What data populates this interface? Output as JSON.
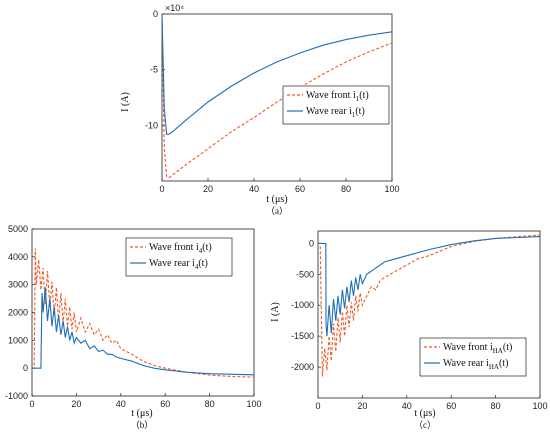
{
  "colors": {
    "front": "#f05a28",
    "rear": "#1f6fb7",
    "axis": "#222222"
  },
  "chart_data": [
    {
      "id": "a",
      "type": "line",
      "caption": "（a）",
      "xlabel": "t (μs)",
      "ylabel": "I (A)",
      "exponent": "×10⁴",
      "xlim": [
        0,
        100
      ],
      "ylim": [
        -15,
        0
      ],
      "xticks": [
        0,
        20,
        40,
        60,
        80,
        100
      ],
      "yticks": [
        0,
        -5,
        -10
      ],
      "legend_position": "inside-right",
      "legend": [
        {
          "text": "Wave front i",
          "sub": "1",
          "tail": "(t)",
          "style": "dashed",
          "color_key": "front"
        },
        {
          "text": "Wave rear i",
          "sub": "1",
          "tail": "(t)",
          "style": "solid",
          "color_key": "rear"
        }
      ],
      "series": [
        {
          "name": "Wave front i1(t)",
          "style": "dashed",
          "color_key": "front",
          "x": [
            0,
            1,
            2,
            3,
            5,
            10,
            20,
            30,
            40,
            50,
            60,
            70,
            80,
            90,
            100
          ],
          "y": [
            0,
            -12,
            -14.6,
            -14.7,
            -14.4,
            -13.6,
            -12.1,
            -10.6,
            -9.3,
            -7.9,
            -6.6,
            -5.4,
            -4.3,
            -3.4,
            -2.6
          ]
        },
        {
          "name": "Wave rear i1(t)",
          "style": "solid",
          "color_key": "rear",
          "x": [
            0,
            1,
            2,
            3,
            5,
            10,
            20,
            30,
            40,
            50,
            60,
            70,
            80,
            90,
            100
          ],
          "y": [
            0,
            -8.5,
            -10.8,
            -10.8,
            -10.5,
            -9.6,
            -7.9,
            -6.5,
            -5.3,
            -4.3,
            -3.5,
            -2.8,
            -2.3,
            -1.9,
            -1.6
          ]
        }
      ]
    },
    {
      "id": "b",
      "type": "line",
      "caption": "（b）",
      "xlabel": "t   (μs)",
      "ylabel": "",
      "xlim": [
        0,
        100
      ],
      "ylim": [
        -1000,
        5000
      ],
      "xticks": [
        0,
        20,
        40,
        60,
        80,
        100
      ],
      "yticks": [
        5000,
        4000,
        3000,
        2000,
        1000,
        0,
        -1000
      ],
      "legend_position": "top-right",
      "legend": [
        {
          "text": "Wave front i",
          "sub": "4",
          "tail": "(t)",
          "style": "dashed",
          "color_key": "front"
        },
        {
          "text": "Wave rear i",
          "sub": "4",
          "tail": "(t)",
          "style": "solid",
          "color_key": "rear"
        }
      ],
      "series": [
        {
          "name": "Wave front i4(t)",
          "style": "dashed",
          "color_key": "front",
          "x": [
            0,
            1,
            1.5,
            2,
            3,
            4,
            5,
            6,
            7,
            8,
            9,
            10,
            11,
            12,
            13,
            14,
            15,
            16,
            17,
            18,
            19,
            20,
            22,
            24,
            26,
            28,
            30,
            32,
            34,
            36,
            38,
            40,
            45,
            50,
            55,
            60,
            70,
            80,
            90,
            100
          ],
          "y": [
            0,
            0,
            4300,
            3000,
            3900,
            2800,
            3600,
            2300,
            3500,
            2200,
            3100,
            1900,
            2900,
            1700,
            2700,
            1600,
            2500,
            1500,
            2200,
            1400,
            2000,
            1300,
            1800,
            1300,
            1600,
            1200,
            1400,
            1000,
            1200,
            900,
            1000,
            700,
            500,
            250,
            100,
            0,
            -150,
            -250,
            -300,
            -320
          ]
        },
        {
          "name": "Wave rear i4(t)",
          "style": "solid",
          "color_key": "rear",
          "x": [
            0,
            4,
            4.5,
            5,
            6,
            7,
            8,
            9,
            10,
            11,
            12,
            13,
            14,
            15,
            16,
            17,
            18,
            19,
            20,
            22,
            24,
            26,
            28,
            30,
            32,
            34,
            36,
            38,
            40,
            45,
            50,
            55,
            60,
            70,
            80,
            90,
            100
          ],
          "y": [
            0,
            0,
            2700,
            2000,
            2900,
            1700,
            2500,
            1500,
            2200,
            1300,
            1900,
            1200,
            1700,
            1100,
            1500,
            1000,
            1300,
            900,
            1100,
            900,
            1000,
            700,
            800,
            600,
            650,
            500,
            500,
            400,
            350,
            250,
            100,
            0,
            -60,
            -150,
            -200,
            -220,
            -240
          ]
        }
      ]
    },
    {
      "id": "c",
      "type": "line",
      "caption": "（c）",
      "xlabel": "t   (μs)",
      "ylabel": "I (A)",
      "xlim": [
        0,
        100
      ],
      "ylim": [
        -2500,
        200
      ],
      "xticks": [
        0,
        20,
        40,
        60,
        80,
        100
      ],
      "yticks": [
        0,
        -500,
        -1000,
        -1500,
        -2000
      ],
      "legend_position": "bottom-right",
      "legend": [
        {
          "text": "Wave front i",
          "sub": "HA",
          "tail": "(t)",
          "style": "dashed",
          "color_key": "front"
        },
        {
          "text": "Wave rear i",
          "sub": "HA",
          "tail": "(t)",
          "style": "solid",
          "color_key": "rear"
        }
      ],
      "series": [
        {
          "name": "Wave front iHA(t)",
          "style": "dashed",
          "color_key": "front",
          "x": [
            0,
            1,
            2,
            3,
            4,
            5,
            6,
            7,
            8,
            9,
            10,
            11,
            12,
            13,
            14,
            15,
            16,
            17,
            18,
            19,
            20,
            22,
            24,
            26,
            28,
            30,
            35,
            40,
            45,
            50,
            60,
            70,
            80,
            90,
            100
          ],
          "y": [
            0,
            0,
            -2150,
            -1700,
            -2050,
            -1500,
            -1900,
            -1300,
            -1750,
            -1200,
            -1600,
            -1100,
            -1500,
            -1000,
            -1350,
            -950,
            -1250,
            -850,
            -1100,
            -800,
            -1000,
            -850,
            -700,
            -750,
            -600,
            -550,
            -450,
            -350,
            -250,
            -200,
            -50,
            30,
            80,
            110,
            130
          ]
        },
        {
          "name": "Wave rear iHA(t)",
          "style": "solid",
          "color_key": "rear",
          "x": [
            0,
            3.5,
            3.6,
            4,
            5,
            6,
            7,
            8,
            9,
            10,
            11,
            12,
            13,
            14,
            15,
            16,
            17,
            18,
            19,
            20,
            22,
            24,
            26,
            28,
            30,
            35,
            40,
            45,
            50,
            60,
            70,
            80,
            90,
            100
          ],
          "y": [
            0,
            0,
            -1300,
            -1500,
            -1000,
            -1450,
            -900,
            -1250,
            -850,
            -1150,
            -750,
            -1050,
            -700,
            -950,
            -600,
            -850,
            -550,
            -750,
            -500,
            -650,
            -500,
            -450,
            -400,
            -350,
            -300,
            -250,
            -200,
            -150,
            -100,
            -20,
            40,
            80,
            95,
            110
          ]
        }
      ]
    }
  ]
}
